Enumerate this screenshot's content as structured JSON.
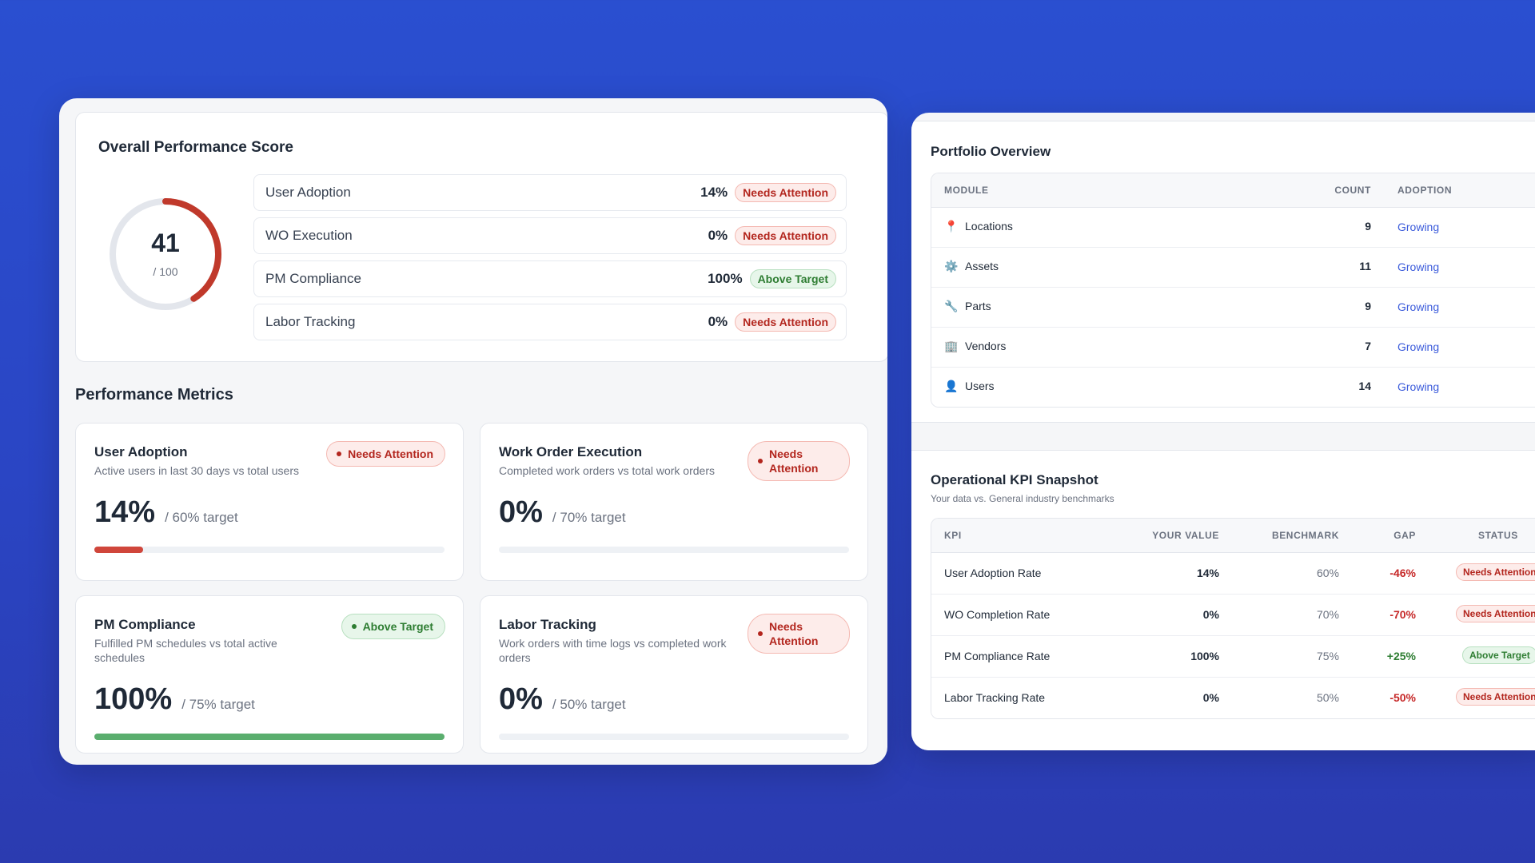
{
  "overall": {
    "title": "Overall Performance Score",
    "score": "41",
    "score_value": 41,
    "score_max_label": "/ 100",
    "score_color": "#c0392b",
    "rows": [
      {
        "label": "User Adoption",
        "value": "14%",
        "status": "Needs Attention",
        "status_type": "warn"
      },
      {
        "label": "WO Execution",
        "value": "0%",
        "status": "Needs Attention",
        "status_type": "warn"
      },
      {
        "label": "PM Compliance",
        "value": "100%",
        "status": "Above Target",
        "status_type": "ok"
      },
      {
        "label": "Labor Tracking",
        "value": "0%",
        "status": "Needs Attention",
        "status_type": "warn"
      }
    ]
  },
  "metrics": {
    "title": "Performance Metrics",
    "cards": [
      {
        "name": "User Adoption",
        "desc": "Active users in last 30 days vs total users",
        "status": "Needs Attention",
        "status_type": "warn",
        "value": "14%",
        "target": "/ 60% target",
        "progress": 0.14,
        "bar_color": "#d0463b"
      },
      {
        "name": "Work Order Execution",
        "desc": "Completed work orders vs total work orders",
        "status": "Needs Attention",
        "status_type": "warn",
        "value": "0%",
        "target": "/ 70% target",
        "progress": 0,
        "bar_color": "#d0463b"
      },
      {
        "name": "PM Compliance",
        "desc": "Fulfilled PM schedules vs total active schedules",
        "status": "Above Target",
        "status_type": "ok",
        "value": "100%",
        "target": "/ 75% target",
        "progress": 1,
        "bar_color": "#5aae6e"
      },
      {
        "name": "Labor Tracking",
        "desc": "Work orders with time logs vs completed work orders",
        "status": "Needs Attention",
        "status_type": "warn",
        "value": "0%",
        "target": "/ 50% target",
        "progress": 0,
        "bar_color": "#d0463b"
      }
    ]
  },
  "portfolio": {
    "title": "Portfolio Overview",
    "headers": {
      "module": "MODULE",
      "count": "COUNT",
      "adoption": "ADOPTION"
    },
    "rows": [
      {
        "icon": "📍",
        "icon_name": "pin-icon",
        "module": "Locations",
        "count": "9",
        "adoption": "Growing"
      },
      {
        "icon": "⚙️",
        "icon_name": "gear-icon",
        "module": "Assets",
        "count": "11",
        "adoption": "Growing"
      },
      {
        "icon": "🔧",
        "icon_name": "wrench-icon",
        "module": "Parts",
        "count": "9",
        "adoption": "Growing"
      },
      {
        "icon": "🏢",
        "icon_name": "building-icon",
        "module": "Vendors",
        "count": "7",
        "adoption": "Growing"
      },
      {
        "icon": "👤",
        "icon_name": "user-icon",
        "module": "Users",
        "count": "14",
        "adoption": "Growing"
      }
    ]
  },
  "kpi": {
    "title": "Operational KPI Snapshot",
    "subtitle": "Your data vs. General industry benchmarks",
    "headers": {
      "kpi": "KPI",
      "your_value": "YOUR VALUE",
      "benchmark": "BENCHMARK",
      "gap": "GAP",
      "status": "STATUS"
    },
    "rows": [
      {
        "kpi": "User Adoption Rate",
        "your_value": "14%",
        "benchmark": "60%",
        "gap": "-46%",
        "gap_type": "neg",
        "status": "Needs Attention",
        "status_type": "warn"
      },
      {
        "kpi": "WO Completion Rate",
        "your_value": "0%",
        "benchmark": "70%",
        "gap": "-70%",
        "gap_type": "neg",
        "status": "Needs Attention",
        "status_type": "warn"
      },
      {
        "kpi": "PM Compliance Rate",
        "your_value": "100%",
        "benchmark": "75%",
        "gap": "+25%",
        "gap_type": "pos",
        "status": "Above Target",
        "status_type": "ok"
      },
      {
        "kpi": "Labor Tracking Rate",
        "your_value": "0%",
        "benchmark": "50%",
        "gap": "-50%",
        "gap_type": "neg",
        "status": "Needs Attention",
        "status_type": "warn"
      }
    ]
  }
}
